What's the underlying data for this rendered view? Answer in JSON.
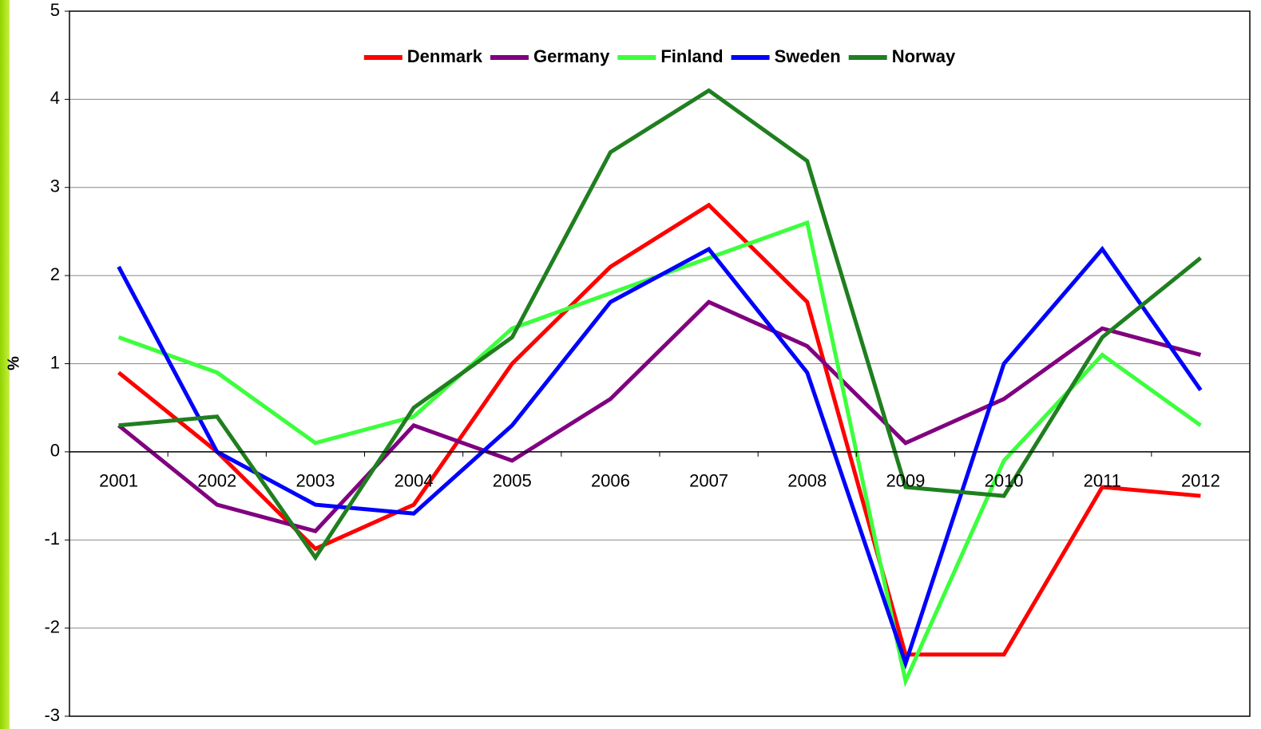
{
  "chart_data": {
    "type": "line",
    "y_label": "%",
    "categories": [
      "2001",
      "2002",
      "2003",
      "2004",
      "2005",
      "2006",
      "2007",
      "2008",
      "2009",
      "2010",
      "2011",
      "2012"
    ],
    "series": [
      {
        "name": "Denmark",
        "color": "#ff0000",
        "values": [
          0.9,
          0.0,
          -1.1,
          -0.6,
          1.0,
          2.1,
          2.8,
          1.7,
          -2.3,
          -2.3,
          -0.4,
          -0.5
        ]
      },
      {
        "name": "Germany",
        "color": "#800080",
        "values": [
          0.3,
          -0.6,
          -0.9,
          0.3,
          -0.1,
          0.6,
          1.7,
          1.2,
          0.1,
          0.6,
          1.4,
          1.1
        ]
      },
      {
        "name": "Finland",
        "color": "#3cff3c",
        "values": [
          1.3,
          0.9,
          0.1,
          0.4,
          1.4,
          1.8,
          2.2,
          2.6,
          -2.6,
          -0.1,
          1.1,
          0.3
        ]
      },
      {
        "name": "Sweden",
        "color": "#0000ff",
        "values": [
          2.1,
          0.0,
          -0.6,
          -0.7,
          0.3,
          1.7,
          2.3,
          0.9,
          -2.4,
          1.0,
          2.3,
          0.7
        ]
      },
      {
        "name": "Norway",
        "color": "#1f7f1f",
        "values": [
          0.3,
          0.4,
          -1.2,
          0.5,
          1.3,
          3.4,
          4.1,
          3.3,
          -0.4,
          -0.5,
          1.3,
          2.2
        ]
      }
    ],
    "ylim": [
      -3,
      5
    ],
    "yticks": [
      -3,
      -2,
      -1,
      0,
      1,
      2,
      3,
      4,
      5
    ],
    "grid": true,
    "legend": "top"
  }
}
